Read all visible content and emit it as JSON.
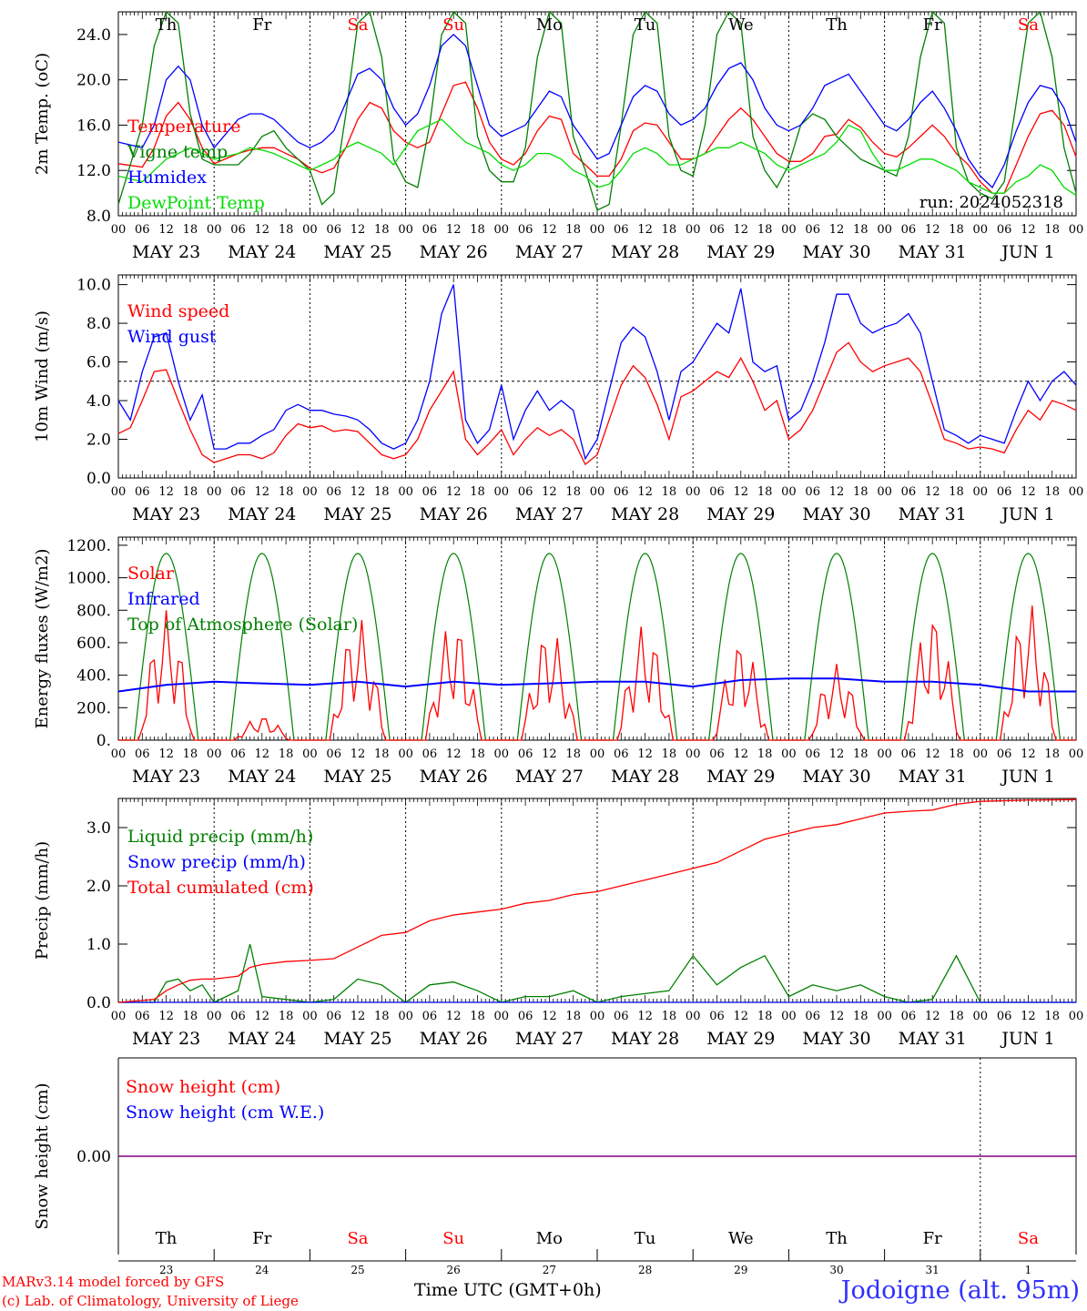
{
  "location": "Jodoigne (alt. 95m)",
  "model": "MARv3.14 model forced by GFS",
  "copyright": "(c) Lab. of Climatology, University of Liege",
  "xaxis_title": "Time UTC (GMT+0h)",
  "run": "run: 2024052318",
  "days": [
    "Th",
    "Fr",
    "Sa",
    "Su",
    "Mo",
    "Tu",
    "We",
    "Th",
    "Fr",
    "Sa"
  ],
  "day_numbers": [
    "23",
    "24",
    "25",
    "26",
    "27",
    "28",
    "29",
    "30",
    "31",
    "1"
  ],
  "date_labels": [
    "MAY 23",
    "MAY 24",
    "MAY 25",
    "MAY 26",
    "MAY 27",
    "MAY 28",
    "MAY 29",
    "MAY 30",
    "MAY 31",
    "JUN  1"
  ],
  "hour_ticks": [
    "00",
    "06",
    "12",
    "18"
  ],
  "colors": {
    "weekday": "#000000",
    "weekend": "#ff0000",
    "red": "#ff0000",
    "green": "#008000",
    "blue": "#0000ff",
    "lightgreen": "#00dd00",
    "purple": "#800080"
  },
  "chart_data": [
    {
      "type": "line",
      "ylabel": "2m Temp. (oC)",
      "ylim": [
        8,
        26
      ],
      "yticks": [
        "8.0",
        "12.0",
        "16.0",
        "20.0",
        "24.0"
      ],
      "x_unit": "hours since MAY 23 00 UTC",
      "x": [
        0,
        6,
        9,
        12,
        15,
        18,
        21,
        24,
        30,
        33,
        36,
        39,
        42,
        45,
        48,
        51,
        54,
        57,
        60,
        63,
        66,
        69,
        72,
        75,
        78,
        81,
        84,
        87,
        90,
        93,
        96,
        99,
        102,
        105,
        108,
        111,
        114,
        117,
        120,
        123,
        126,
        129,
        132,
        135,
        138,
        141,
        144,
        147,
        150,
        153,
        156,
        159,
        162,
        165,
        168,
        171,
        174,
        177,
        180,
        183,
        186,
        189,
        192,
        195,
        198,
        201,
        204,
        207,
        210,
        213,
        216,
        219,
        222,
        225,
        228,
        231,
        234,
        237,
        240
      ],
      "series": [
        {
          "name": "Temperature",
          "color": "#ff0000",
          "values": [
            12.6,
            12.3,
            14.0,
            16.8,
            18.0,
            16.5,
            14.0,
            12.6,
            13.5,
            13.8,
            14.0,
            14.0,
            13.5,
            13.0,
            12.2,
            11.8,
            12.2,
            14.0,
            16.5,
            18.0,
            17.5,
            15.5,
            14.5,
            14.0,
            14.5,
            17.0,
            19.5,
            19.8,
            17.5,
            14.5,
            13.0,
            12.5,
            13.5,
            15.5,
            16.8,
            16.5,
            13.5,
            12.5,
            11.5,
            11.5,
            13.0,
            15.5,
            16.2,
            16.0,
            14.5,
            13.0,
            13.0,
            13.5,
            15.0,
            16.5,
            17.5,
            16.5,
            15.0,
            13.5,
            12.8,
            12.8,
            13.5,
            15.0,
            15.2,
            16.5,
            15.8,
            14.5,
            13.5,
            13.2,
            14.0,
            15.0,
            16.0,
            15.0,
            13.5,
            12.5,
            11.0,
            10.0,
            10.0,
            12.5,
            15.0,
            17.0,
            17.3,
            16.0,
            13.2
          ]
        },
        {
          "name": "Vigne temp",
          "color": "#008000",
          "values": [
            9.0,
            16.0,
            23.0,
            26.0,
            25.0,
            17.0,
            13.0,
            12.5,
            12.5,
            13.5,
            15.0,
            15.5,
            14.0,
            13.0,
            12.0,
            9.0,
            10.0,
            17.0,
            25.0,
            26.0,
            22.0,
            13.0,
            11.0,
            10.5,
            16.0,
            24.0,
            26.0,
            25.0,
            15.0,
            12.0,
            11.0,
            11.0,
            14.0,
            22.0,
            26.0,
            25.0,
            15.0,
            12.0,
            8.5,
            9.0,
            16.0,
            24.0,
            26.0,
            25.0,
            15.0,
            12.0,
            11.5,
            16.0,
            24.0,
            26.0,
            25.0,
            15.0,
            12.0,
            10.5,
            12.5,
            16.0,
            17.0,
            16.5,
            15.0,
            14.0,
            13.0,
            12.5,
            12.0,
            11.5,
            15.0,
            22.0,
            26.0,
            25.0,
            14.0,
            11.0,
            10.0,
            9.5,
            11.0,
            18.0,
            25.0,
            26.0,
            22.0,
            14.0,
            10.0
          ]
        },
        {
          "name": "Humidex",
          "color": "#0000ff",
          "values": [
            14.5,
            14.0,
            16.0,
            20.0,
            21.2,
            20.0,
            16.0,
            14.0,
            16.5,
            17.0,
            17.0,
            16.5,
            15.5,
            14.5,
            14.0,
            14.5,
            15.5,
            18.0,
            20.5,
            21.0,
            20.0,
            17.5,
            16.0,
            17.0,
            19.5,
            23.0,
            24.0,
            23.0,
            19.5,
            16.0,
            15.0,
            15.5,
            16.0,
            17.5,
            19.0,
            18.5,
            16.0,
            14.5,
            13.0,
            13.5,
            16.0,
            18.5,
            19.5,
            19.0,
            17.0,
            16.0,
            16.5,
            17.5,
            19.5,
            21.0,
            21.5,
            20.0,
            17.5,
            16.0,
            15.5,
            16.0,
            17.5,
            19.5,
            20.0,
            20.5,
            19.0,
            17.5,
            16.0,
            15.5,
            16.5,
            18.0,
            19.0,
            17.5,
            15.5,
            13.0,
            11.5,
            10.5,
            12.5,
            15.5,
            18.0,
            19.5,
            19.2,
            17.5,
            14.5
          ]
        },
        {
          "name": "DewPoint Temp",
          "color": "#00dd00",
          "values": [
            11.5,
            11.0,
            12.0,
            13.0,
            13.5,
            14.0,
            13.5,
            13.0,
            13.5,
            14.0,
            13.8,
            13.5,
            13.0,
            12.5,
            12.0,
            12.5,
            13.0,
            14.0,
            14.5,
            14.0,
            13.5,
            12.5,
            14.0,
            15.5,
            16.0,
            16.5,
            15.5,
            14.5,
            14.0,
            13.5,
            12.5,
            12.0,
            12.5,
            13.5,
            13.5,
            13.0,
            12.0,
            11.5,
            10.5,
            10.8,
            12.0,
            13.5,
            14.0,
            13.5,
            12.5,
            12.5,
            13.0,
            13.5,
            14.0,
            14.0,
            14.5,
            14.0,
            13.5,
            12.5,
            12.0,
            12.5,
            13.0,
            13.5,
            14.5,
            16.0,
            15.5,
            13.5,
            12.0,
            12.0,
            12.5,
            13.0,
            13.0,
            12.5,
            12.0,
            11.0,
            10.5,
            10.0,
            10.0,
            11.0,
            11.5,
            12.5,
            12.0,
            10.5,
            9.8
          ]
        }
      ],
      "legend": "top-left"
    },
    {
      "type": "line",
      "ylabel": "10m Wind (m/s)",
      "ylim": [
        0,
        10.5
      ],
      "yticks": [
        "0.0",
        "2.0",
        "4.0",
        "6.0",
        "8.0",
        "10.0"
      ],
      "reference_line": 5.0,
      "x_unit": "hours since MAY 23 00 UTC",
      "x": [
        0,
        3,
        6,
        9,
        12,
        15,
        18,
        21,
        24,
        27,
        30,
        33,
        36,
        39,
        42,
        45,
        48,
        51,
        54,
        57,
        60,
        63,
        66,
        69,
        72,
        75,
        78,
        81,
        84,
        87,
        90,
        93,
        96,
        99,
        102,
        105,
        108,
        111,
        114,
        117,
        120,
        123,
        126,
        129,
        132,
        135,
        138,
        141,
        144,
        147,
        150,
        153,
        156,
        159,
        162,
        165,
        168,
        171,
        174,
        177,
        180,
        183,
        186,
        189,
        192,
        195,
        198,
        201,
        204,
        207,
        210,
        213,
        216,
        219,
        222,
        225,
        228,
        231,
        234,
        237,
        240
      ],
      "series": [
        {
          "name": "Wind speed",
          "color": "#ff0000",
          "values": [
            2.3,
            2.6,
            4.0,
            5.5,
            5.6,
            4.0,
            2.5,
            1.2,
            0.8,
            1.0,
            1.2,
            1.2,
            1.0,
            1.3,
            2.2,
            2.8,
            2.6,
            2.7,
            2.4,
            2.5,
            2.4,
            1.8,
            1.2,
            1.0,
            1.2,
            2.0,
            3.5,
            4.5,
            5.5,
            2.0,
            1.2,
            1.8,
            2.5,
            1.2,
            2.0,
            2.6,
            2.2,
            2.5,
            2.0,
            0.7,
            1.2,
            3.0,
            4.8,
            5.8,
            5.2,
            3.8,
            2.0,
            4.2,
            4.5,
            5.0,
            5.5,
            5.2,
            6.2,
            5.0,
            3.5,
            4.0,
            2.0,
            2.5,
            3.5,
            5.0,
            6.5,
            7.0,
            6.0,
            5.5,
            5.8,
            6.0,
            6.2,
            5.5,
            3.8,
            2.0,
            1.8,
            1.5,
            1.6,
            1.5,
            1.3,
            2.5,
            3.5,
            3.0,
            4.0,
            3.8,
            3.5
          ]
        },
        {
          "name": "Wind gust",
          "color": "#0000ff",
          "values": [
            4.0,
            3.0,
            5.5,
            7.3,
            7.5,
            5.0,
            3.0,
            4.3,
            1.5,
            1.5,
            1.8,
            1.8,
            2.2,
            2.5,
            3.5,
            3.8,
            3.5,
            3.5,
            3.3,
            3.2,
            3.0,
            2.5,
            1.8,
            1.5,
            1.8,
            3.0,
            5.0,
            8.5,
            10.0,
            3.0,
            1.8,
            2.5,
            4.8,
            2.0,
            3.5,
            4.5,
            3.5,
            4.0,
            3.5,
            1.0,
            2.0,
            4.5,
            7.0,
            7.8,
            7.3,
            5.5,
            3.0,
            5.5,
            6.0,
            7.0,
            8.0,
            7.5,
            9.8,
            6.0,
            5.5,
            5.8,
            3.0,
            3.5,
            5.0,
            7.0,
            9.5,
            9.5,
            8.0,
            7.5,
            7.8,
            8.0,
            8.5,
            7.5,
            5.0,
            2.5,
            2.2,
            1.8,
            2.2,
            2.0,
            1.8,
            3.5,
            5.0,
            4.0,
            5.0,
            5.5,
            4.8
          ]
        }
      ],
      "legend": "top-left"
    },
    {
      "type": "line",
      "ylabel": "Energy fluxes (W/m2)",
      "ylim": [
        0,
        1250
      ],
      "yticks": [
        "0.",
        "200.",
        "400.",
        "600.",
        "800.",
        "1000.",
        "1200."
      ],
      "x_unit": "hours since MAY 23 00 UTC",
      "series": [
        {
          "name": "Solar",
          "color": "#ff0000",
          "day_peaks": [
            800,
            150,
            760,
            750,
            700,
            720,
            620,
            470,
            790,
            850
          ]
        },
        {
          "name": "Infrared",
          "color": "#0000ff",
          "values": [
            300,
            340,
            360,
            350,
            340,
            360,
            330,
            360,
            340,
            350,
            360,
            360,
            330,
            370,
            380,
            380,
            360,
            360,
            340,
            300,
            300
          ]
        },
        {
          "name": "Top of Atmosphere (Solar)",
          "color": "#008000",
          "daily_peak": 1150,
          "sunrise_hour": 4,
          "sunset_hour": 20
        }
      ],
      "legend": "top-left"
    },
    {
      "type": "line",
      "ylabel": "Precip (mm/h)",
      "ylim": [
        0,
        3.5
      ],
      "yticks": [
        "0.0",
        "1.0",
        "2.0",
        "3.0"
      ],
      "x_unit": "hours since MAY 23 00 UTC",
      "x": [
        0,
        9,
        12,
        15,
        18,
        21,
        24,
        30,
        33,
        36,
        42,
        48,
        54,
        60,
        66,
        72,
        78,
        84,
        90,
        96,
        102,
        108,
        114,
        120,
        126,
        132,
        138,
        144,
        150,
        156,
        162,
        168,
        174,
        180,
        186,
        192,
        198,
        204,
        210,
        216,
        228,
        240
      ],
      "series": [
        {
          "name": "Liquid precip (mm/h)",
          "color": "#008000",
          "values": [
            0.0,
            0.0,
            0.35,
            0.4,
            0.2,
            0.3,
            0.0,
            0.2,
            1.0,
            0.1,
            0.05,
            0.0,
            0.05,
            0.4,
            0.3,
            0.0,
            0.3,
            0.35,
            0.2,
            0.0,
            0.1,
            0.1,
            0.2,
            0.0,
            0.1,
            0.15,
            0.2,
            0.8,
            0.3,
            0.6,
            0.8,
            0.1,
            0.3,
            0.2,
            0.3,
            0.1,
            0.0,
            0.05,
            0.8,
            0.0,
            0.0,
            0.0
          ]
        },
        {
          "name": "Snow precip (mm/h)",
          "color": "#0000ff",
          "values": [
            0.0,
            0.0,
            0.0,
            0.0,
            0.0,
            0.0,
            0.0,
            0.0,
            0.0,
            0.0,
            0.0,
            0.0,
            0.0,
            0.0,
            0.0,
            0.0,
            0.0,
            0.0,
            0.0,
            0.0,
            0.0,
            0.0,
            0.0,
            0.0,
            0.0,
            0.0,
            0.0,
            0.0,
            0.0,
            0.0,
            0.0,
            0.0,
            0.0,
            0.0,
            0.0,
            0.0,
            0.0,
            0.0,
            0.0,
            0.0,
            0.0,
            0.0
          ]
        },
        {
          "name": "Total cumulated (cm)",
          "color": "#ff0000",
          "values": [
            0.0,
            0.05,
            0.2,
            0.3,
            0.38,
            0.4,
            0.4,
            0.45,
            0.6,
            0.65,
            0.7,
            0.72,
            0.75,
            0.95,
            1.15,
            1.2,
            1.4,
            1.5,
            1.55,
            1.6,
            1.7,
            1.75,
            1.85,
            1.9,
            2.0,
            2.1,
            2.2,
            2.3,
            2.4,
            2.6,
            2.8,
            2.9,
            3.0,
            3.05,
            3.15,
            3.25,
            3.28,
            3.3,
            3.4,
            3.45,
            3.47,
            3.48
          ]
        }
      ],
      "legend": "top-left"
    },
    {
      "type": "line",
      "ylabel": "Snow height (cm)",
      "yticks": [
        "0.00"
      ],
      "x": [
        0,
        240
      ],
      "series": [
        {
          "name": "Snow height (cm)",
          "color": "#ff0000",
          "values": [
            0.0,
            0.0
          ]
        },
        {
          "name": "Snow height (cm W.E.)",
          "color": "#0000ff",
          "values": [
            0.0,
            0.0
          ]
        }
      ],
      "legend": "top-left"
    }
  ]
}
